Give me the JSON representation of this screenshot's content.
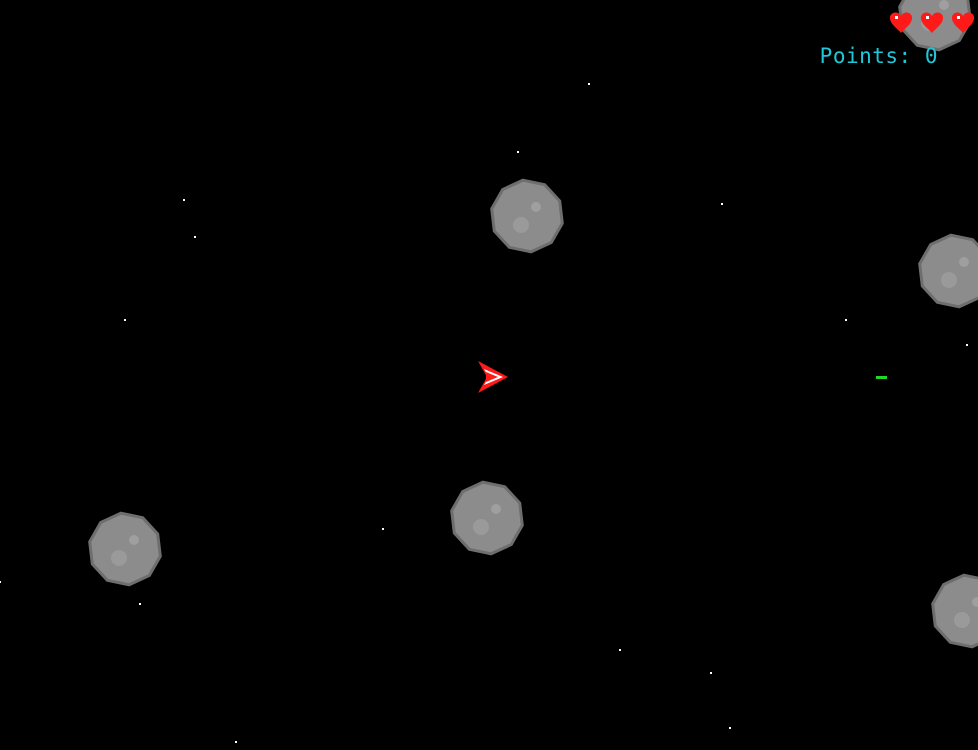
{
  "colors": {
    "background": "#000000",
    "star": "#ffffff",
    "asteroid_fill": "#8c8c8c",
    "asteroid_edge": "#6e6e6e",
    "asteroid_crater": "#a6a6a6",
    "ship": "#ff1a1a",
    "ship_accent": "#ffffff",
    "bullet": "#22d822",
    "heart": "#ff1a1a",
    "score_text": "#1fc8d8"
  },
  "hud": {
    "lives": 3,
    "score_label": "Points:",
    "score_value": "0"
  },
  "icons": {
    "life": "heart-icon",
    "player": "player-ship",
    "projectile": "bullet",
    "rock": "asteroid"
  },
  "entities": {
    "asteroid_count": 6,
    "bullet_count": 1,
    "player_heading": "right"
  }
}
